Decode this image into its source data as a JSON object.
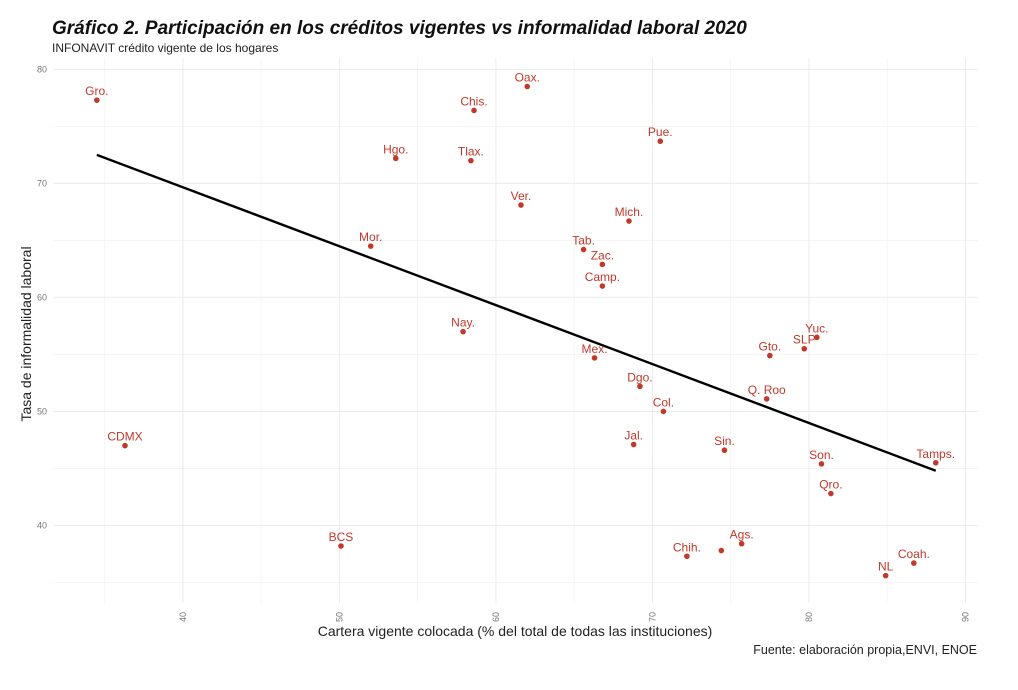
{
  "chart_data": {
    "type": "scatter",
    "title": "Gráfico 2. Participación en los créditos vigentes vs informalidad laboral 2020",
    "subtitle": "INFONAVIT crédito vigente de los hogares",
    "xlabel": "Cartera vigente colocada (% del total de todas las instituciones)",
    "ylabel": "Tasa de informalidad laboral",
    "caption": "Fuente: elaboración propia,ENVI, ENOE",
    "xlim": [
      31.7,
      90.8
    ],
    "ylim": [
      33.2,
      81
    ],
    "x_ticks": [
      40,
      50,
      60,
      70,
      80,
      90
    ],
    "y_ticks": [
      40,
      50,
      60,
      70,
      80
    ],
    "x_minor_ticks": [
      35,
      45,
      55,
      65,
      75,
      85
    ],
    "y_minor_ticks": [
      35,
      45,
      55,
      65,
      75
    ],
    "grid": true,
    "point_color": "#c0392b",
    "line_color": "#000000",
    "points": [
      {
        "label": "Gro.",
        "x": 34.5,
        "y": 77.3
      },
      {
        "label": "Oax.",
        "x": 62.0,
        "y": 78.5
      },
      {
        "label": "Chis.",
        "x": 58.6,
        "y": 76.4
      },
      {
        "label": "Pue.",
        "x": 70.5,
        "y": 73.7
      },
      {
        "label": "Hgo.",
        "x": 53.6,
        "y": 72.2
      },
      {
        "label": "Tlax.",
        "x": 58.4,
        "y": 72.0
      },
      {
        "label": "Ver.",
        "x": 61.6,
        "y": 68.1
      },
      {
        "label": "Mich.",
        "x": 68.5,
        "y": 66.7
      },
      {
        "label": "Mor.",
        "x": 52.0,
        "y": 64.5
      },
      {
        "label": "Tab.",
        "x": 65.6,
        "y": 64.2
      },
      {
        "label": "Zac.",
        "x": 66.8,
        "y": 62.9
      },
      {
        "label": "Camp.",
        "x": 66.8,
        "y": 61.0
      },
      {
        "label": "Nay.",
        "x": 57.9,
        "y": 57.0
      },
      {
        "label": "Yuc.",
        "x": 80.5,
        "y": 56.5
      },
      {
        "label": "SLP",
        "x": 79.7,
        "y": 55.5
      },
      {
        "label": "Gto.",
        "x": 77.5,
        "y": 54.9
      },
      {
        "label": "Mex.",
        "x": 66.3,
        "y": 54.7
      },
      {
        "label": "Dgo.",
        "x": 69.2,
        "y": 52.2
      },
      {
        "label": "Q. Roo",
        "x": 77.3,
        "y": 51.1
      },
      {
        "label": "Col.",
        "x": 70.7,
        "y": 50.0
      },
      {
        "label": "Jal.",
        "x": 68.8,
        "y": 47.1
      },
      {
        "label": "CDMX",
        "x": 36.3,
        "y": 47.0
      },
      {
        "label": "Sin.",
        "x": 74.6,
        "y": 46.6
      },
      {
        "label": "Tamps.",
        "x": 88.1,
        "y": 45.5
      },
      {
        "label": "Son.",
        "x": 80.8,
        "y": 45.4
      },
      {
        "label": "Qro.",
        "x": 81.4,
        "y": 42.8
      },
      {
        "label": "Ags.",
        "x": 75.7,
        "y": 38.4
      },
      {
        "label": "BCS",
        "x": 50.1,
        "y": 38.2
      },
      {
        "label": "",
        "x": 74.4,
        "y": 37.8
      },
      {
        "label": "Chih.",
        "x": 72.2,
        "y": 37.3
      },
      {
        "label": "Coah.",
        "x": 86.7,
        "y": 36.7
      },
      {
        "label": "NL",
        "x": 84.9,
        "y": 35.6
      }
    ],
    "trend_line": {
      "x": [
        34.5,
        88.1
      ],
      "y": [
        72.5,
        44.8
      ]
    }
  }
}
